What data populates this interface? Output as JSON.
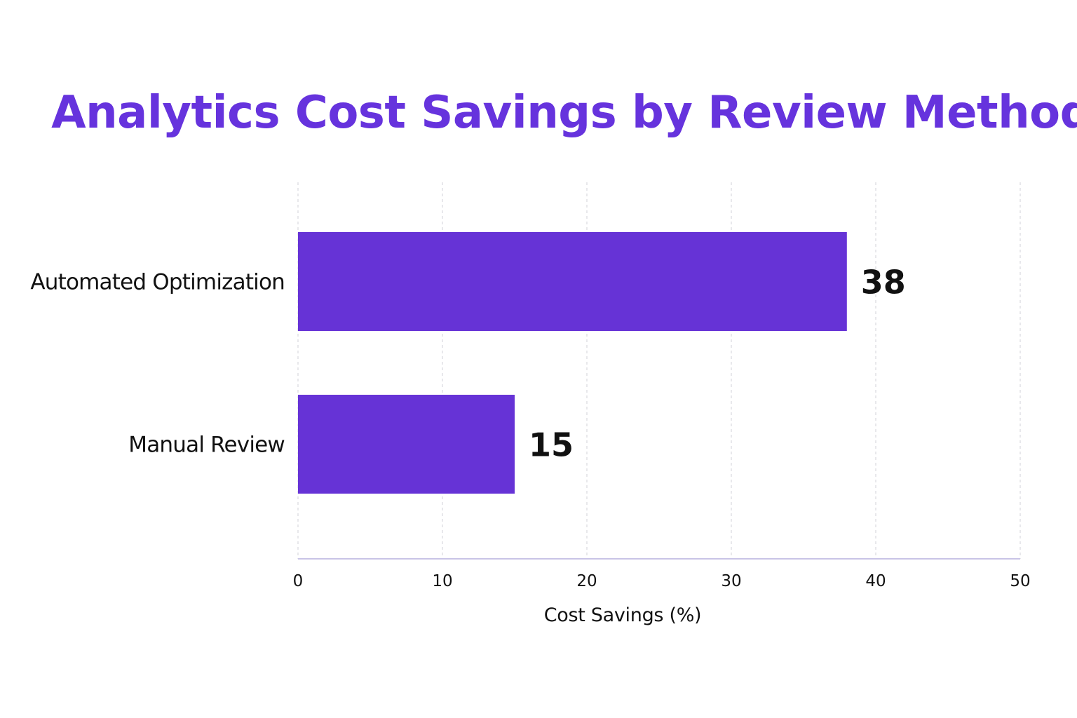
{
  "chart_data": {
    "type": "bar",
    "orientation": "horizontal",
    "title": "Analytics Cost Savings by Review Method",
    "categories": [
      "Automated Optimization",
      "Manual Review"
    ],
    "values": [
      38,
      15
    ],
    "data_labels": [
      "38",
      "15"
    ],
    "xlabel": "Cost Savings (%)",
    "ylabel": "",
    "xlim": [
      0,
      50
    ],
    "xticks": [
      "0",
      "10",
      "20",
      "30",
      "40",
      "50"
    ],
    "grid": true,
    "legend": "none",
    "colors": {
      "bar": "#6633d6",
      "title": "#6633dd"
    }
  }
}
